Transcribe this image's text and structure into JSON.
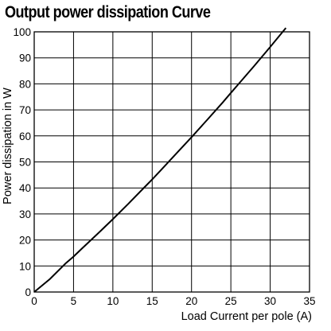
{
  "chart_data": {
    "type": "line",
    "title": "Output power dissipation Curve",
    "xlabel": "Load Current per pole (A)",
    "ylabel": "Power dissipation in W",
    "xlim": [
      0,
      35
    ],
    "ylim": [
      0,
      100
    ],
    "x_ticks": [
      0,
      5,
      10,
      15,
      20,
      25,
      30,
      35
    ],
    "y_ticks": [
      0,
      10,
      20,
      30,
      40,
      50,
      60,
      70,
      80,
      90,
      100
    ],
    "grid": true,
    "legend": "none",
    "series": [
      {
        "x": [
          0,
          2,
          4,
          5,
          6,
          8,
          10,
          12,
          14,
          15,
          16,
          18,
          20,
          22,
          24,
          25,
          26,
          28,
          30,
          32
        ],
        "values": [
          0,
          5,
          11,
          13.6,
          16.5,
          22.2,
          28,
          34,
          40.2,
          43.3,
          46.5,
          53,
          59.5,
          66.2,
          73,
          76.5,
          80,
          87,
          94.2,
          101.5
        ],
        "color": "#000000"
      }
    ]
  }
}
